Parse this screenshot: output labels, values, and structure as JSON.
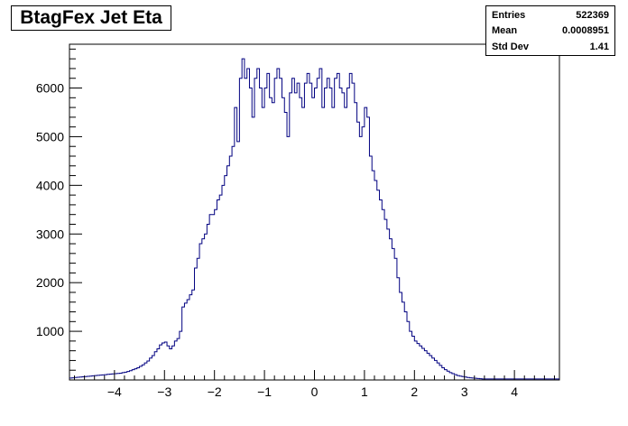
{
  "chart_data": {
    "type": "histogram",
    "title": "BtagFex Jet Eta",
    "xlabel": "",
    "ylabel": "",
    "xlim": [
      -4.9,
      4.9
    ],
    "ylim": [
      0,
      6900
    ],
    "x_ticks": [
      -4,
      -3,
      -2,
      -1,
      0,
      1,
      2,
      3,
      4
    ],
    "y_ticks": [
      1000,
      2000,
      3000,
      4000,
      5000,
      6000
    ],
    "line_color": "#000080",
    "grid": false,
    "bin_edges_range": [
      -4.9,
      4.9
    ],
    "bin_count": 196,
    "values": [
      40,
      45,
      50,
      55,
      60,
      65,
      70,
      75,
      80,
      85,
      90,
      95,
      100,
      105,
      110,
      115,
      120,
      125,
      130,
      135,
      140,
      150,
      160,
      175,
      190,
      210,
      230,
      250,
      280,
      310,
      350,
      390,
      450,
      500,
      580,
      640,
      720,
      760,
      780,
      700,
      640,
      700,
      800,
      850,
      1000,
      1500,
      1580,
      1650,
      1750,
      1850,
      2300,
      2500,
      2800,
      2900,
      3000,
      3200,
      3400,
      3400,
      3500,
      3700,
      3800,
      4000,
      4200,
      4400,
      4600,
      4800,
      5600,
      4900,
      6200,
      6600,
      6200,
      6400,
      6000,
      5400,
      6200,
      6400,
      6000,
      5600,
      6000,
      6300,
      5800,
      5700,
      6200,
      6400,
      6200,
      5800,
      5500,
      5000,
      5900,
      6200,
      5900,
      6100,
      5800,
      5600,
      6100,
      6300,
      6100,
      5800,
      6000,
      6200,
      6400,
      5600,
      6000,
      6200,
      6000,
      5600,
      6200,
      6300,
      6000,
      5900,
      5600,
      6000,
      6300,
      6100,
      5700,
      5300,
      5000,
      5200,
      5600,
      5400,
      4600,
      4300,
      4100,
      3900,
      3700,
      3500,
      3300,
      3100,
      2900,
      2700,
      2500,
      2100,
      1800,
      1600,
      1400,
      1200,
      1000,
      900,
      800,
      750,
      700,
      650,
      600,
      550,
      500,
      450,
      400,
      350,
      300,
      250,
      210,
      180,
      150,
      130,
      110,
      90,
      80,
      70,
      60,
      50,
      45,
      40,
      35,
      30,
      25,
      20,
      20,
      20,
      20,
      20,
      20,
      20,
      20,
      20,
      20,
      20,
      20,
      20,
      20,
      20,
      20,
      20,
      20,
      20,
      20,
      20,
      20,
      20,
      20,
      20,
      20,
      20,
      20,
      20,
      20,
      20
    ]
  },
  "title": "BtagFex Jet Eta",
  "stats": {
    "entries_label": "Entries",
    "entries_value": "522369",
    "mean_label": "Mean",
    "mean_value": "0.0008951",
    "std_label": "Std Dev",
    "std_value": "1.41"
  }
}
